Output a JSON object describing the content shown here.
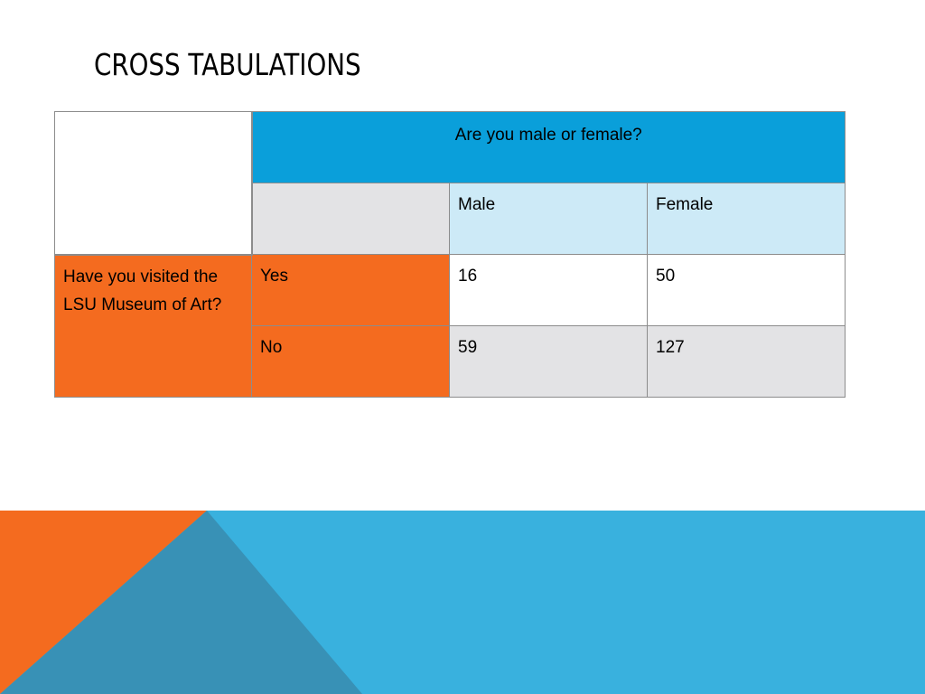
{
  "slide": {
    "title": "CROSS TABULATIONS"
  },
  "table": {
    "column_question": "Are you male or female?",
    "row_question": "Have you visited the LSU Museum of Art?",
    "columns": [
      "Male",
      "Female"
    ],
    "rows": [
      {
        "label": "Yes",
        "values": [
          "16",
          "50"
        ]
      },
      {
        "label": "No",
        "values": [
          "59",
          "127"
        ]
      }
    ]
  },
  "colors": {
    "header_blue": "#0a9fda",
    "light_blue": "#cdeaf7",
    "orange": "#f46b1f",
    "gray": "#e3e3e5",
    "decor_blue": "#39b1de",
    "decor_steel": "#3891b6"
  }
}
